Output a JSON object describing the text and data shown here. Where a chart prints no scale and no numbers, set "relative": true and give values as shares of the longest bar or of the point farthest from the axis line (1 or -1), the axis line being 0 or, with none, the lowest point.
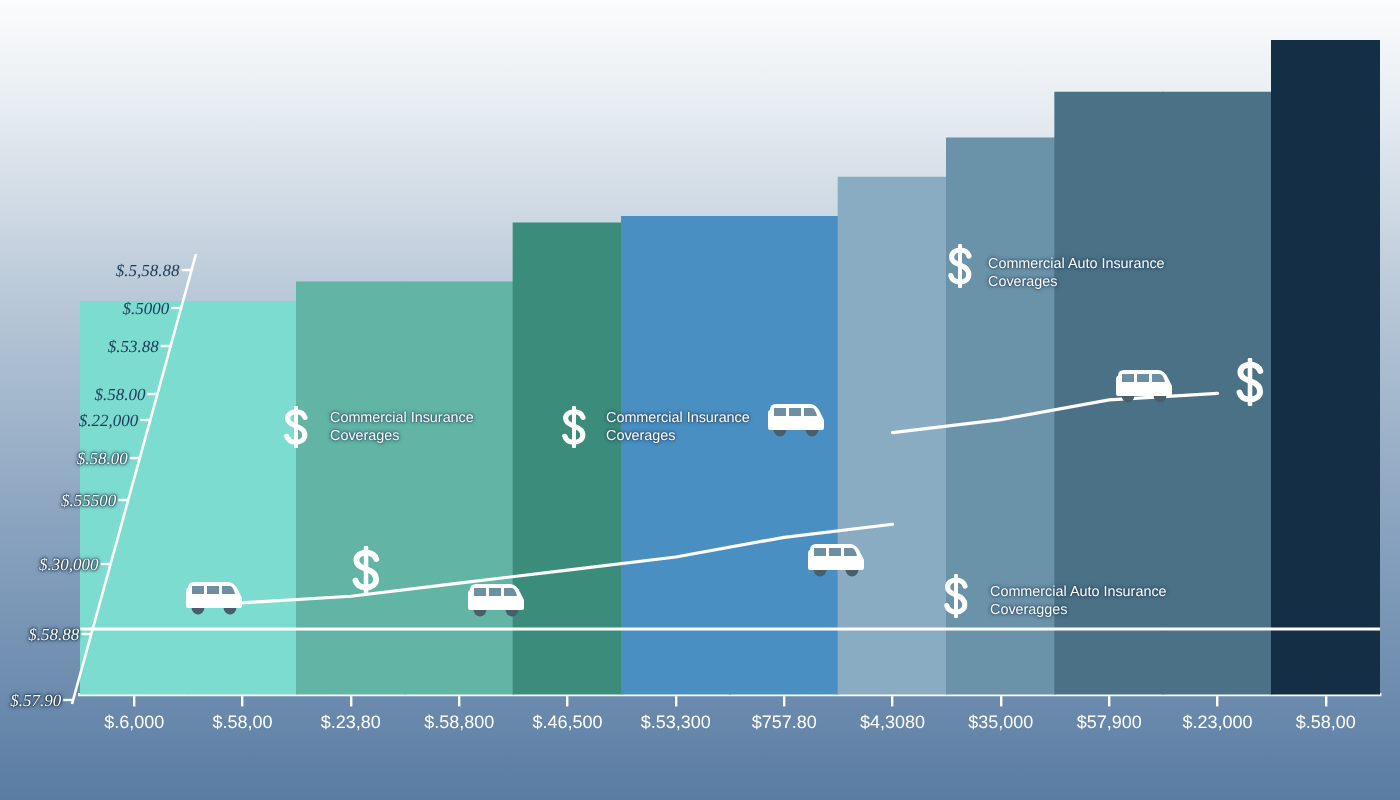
{
  "chart_data": {
    "type": "bar",
    "relative": true,
    "categories": [
      "$.6,000",
      "$.58,00",
      "$.23,80",
      "$.58,800",
      "$.46,500",
      "$.53,300",
      "$757.80",
      "$4,3080",
      "$35,000",
      "$57,900",
      "$.23,000",
      "$.58,00"
    ],
    "series": [
      {
        "colors": [
          "#7ddcd0",
          "#7ddcd0",
          "#62b5a4",
          "#62b5a4",
          "#3b8c7b",
          "#4a8fc2",
          "#4a8fc2",
          "#8aacc2",
          "#6a92a8",
          "#4b7186",
          "#4b7186",
          "#142e45"
        ],
        "values": [
          0.6,
          0.6,
          0.63,
          0.63,
          0.72,
          0.73,
          0.73,
          0.79,
          0.85,
          0.92,
          0.92,
          1
        ]
      },
      {
        "type": "line",
        "color": "#ffffff",
        "values": [
          null,
          0.14,
          0.15,
          0.17,
          0.19,
          0.21,
          0.24,
          0.26,
          null,
          null,
          null,
          null
        ]
      },
      {
        "type": "line",
        "color": "#ffffff",
        "values": [
          null,
          null,
          null,
          null,
          null,
          null,
          null,
          0.4,
          0.42,
          0.45,
          0.46,
          null
        ]
      }
    ],
    "ref_lines": [
      {
        "axis": "y",
        "value": 0.1,
        "color": "#ffffff"
      }
    ],
    "annotations": [
      "Commercial Auto Insurance Coverages",
      "Commercial Insurance Coverages",
      "Commercial Insurance Coverages",
      "Commercial Auto Insurance Coveragges",
      "$.5,58.88",
      "$.5000",
      "$.53.88",
      "$.58.00",
      "$.22,000",
      "$.58.00",
      "$.55500",
      "$.30,000",
      "$.58.88",
      "$.57.90"
    ]
  }
}
